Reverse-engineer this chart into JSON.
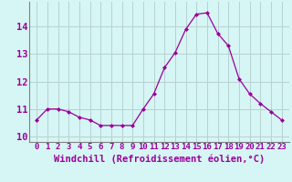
{
  "x": [
    0,
    1,
    2,
    3,
    4,
    5,
    6,
    7,
    8,
    9,
    10,
    11,
    12,
    13,
    14,
    15,
    16,
    17,
    18,
    19,
    20,
    21,
    22,
    23
  ],
  "y": [
    10.6,
    11.0,
    11.0,
    10.9,
    10.7,
    10.6,
    10.4,
    10.4,
    10.4,
    10.4,
    11.0,
    11.55,
    12.5,
    13.05,
    13.9,
    14.45,
    14.5,
    13.75,
    13.3,
    12.1,
    11.55,
    11.2,
    10.9,
    10.6
  ],
  "line_color": "#990099",
  "marker": "D",
  "marker_size": 2,
  "bg_color": "#d6f5f5",
  "grid_color": "#b8d0d0",
  "tick_color": "#990099",
  "xlabel": "Windchill (Refroidissement éolien,°C)",
  "ylim": [
    9.8,
    14.9
  ],
  "yticks": [
    10,
    11,
    12,
    13,
    14
  ],
  "xticks": [
    0,
    1,
    2,
    3,
    4,
    5,
    6,
    7,
    8,
    9,
    10,
    11,
    12,
    13,
    14,
    15,
    16,
    17,
    18,
    19,
    20,
    21,
    22,
    23
  ],
  "tick_fontsize": 6.5,
  "xlabel_fontsize": 7.5
}
